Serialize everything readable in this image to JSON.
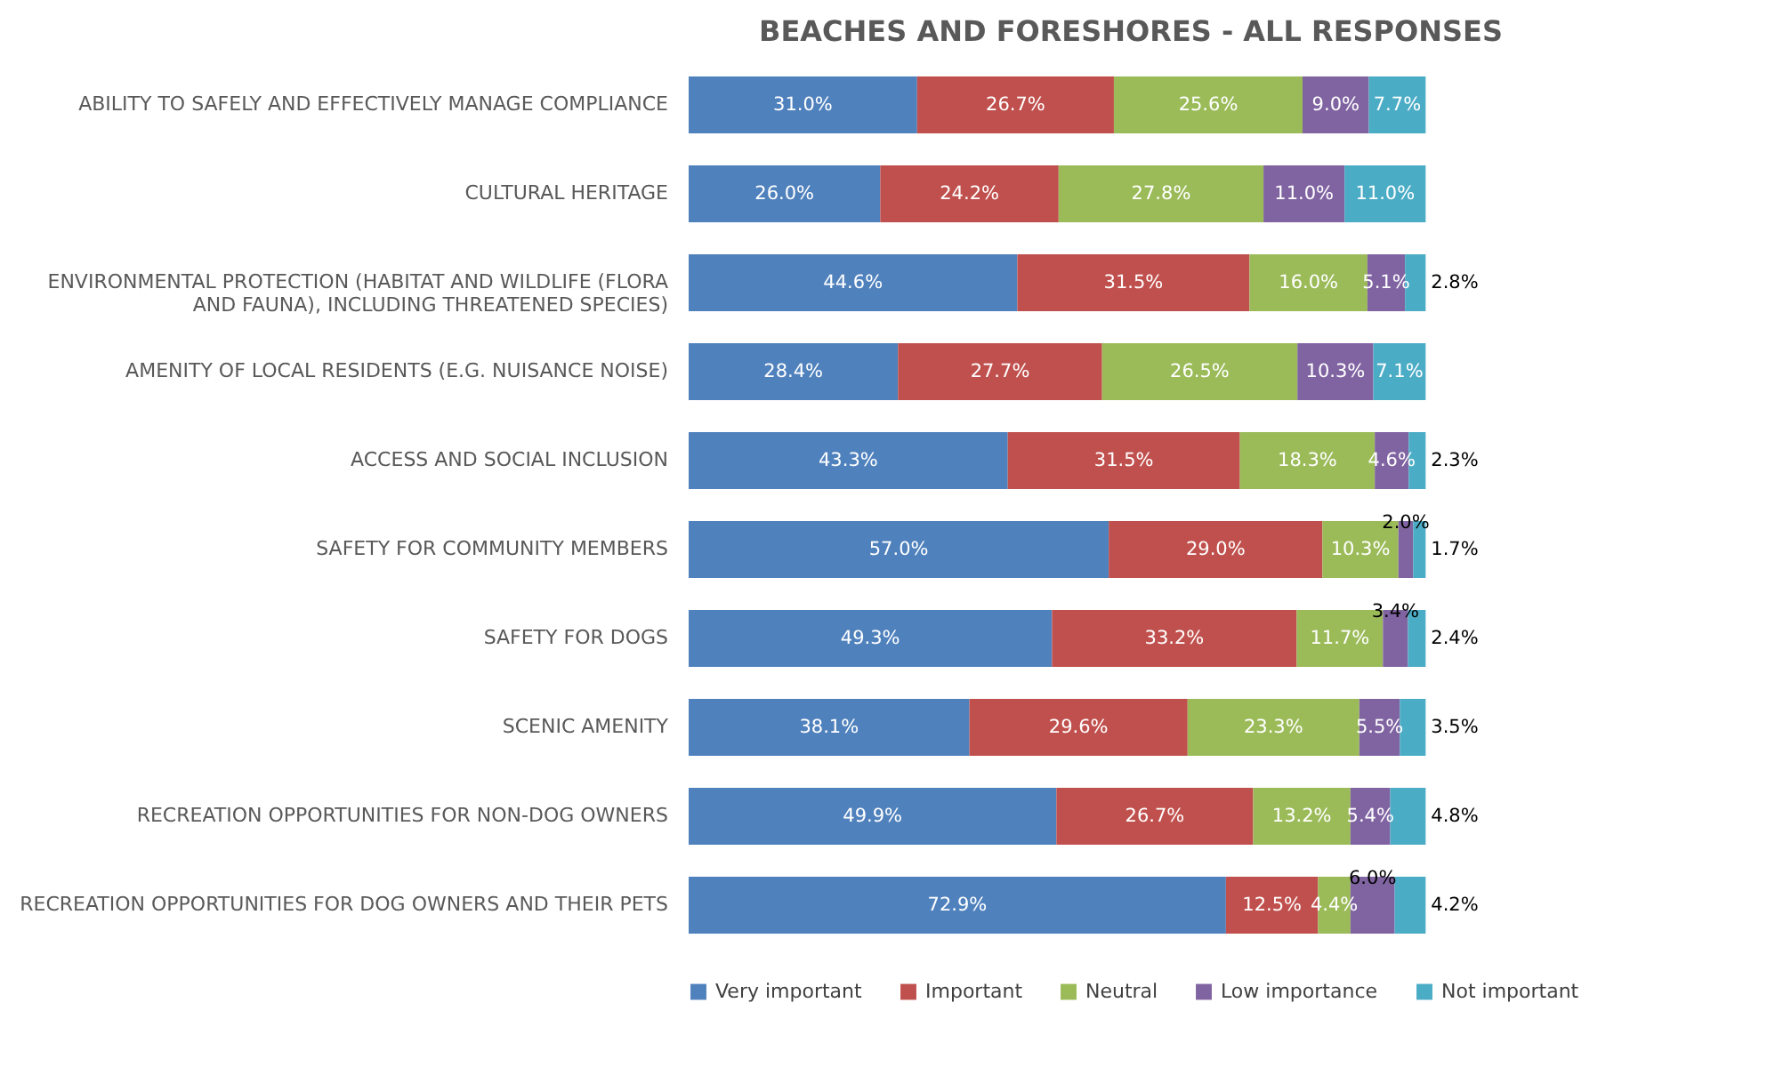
{
  "chart_data": {
    "type": "bar",
    "orientation": "horizontal",
    "stacked": true,
    "title": "BEACHES AND FORESHORES - ALL RESPONSES",
    "legend": "bottom",
    "grid": false,
    "categories": [
      "ABILITY TO SAFELY AND EFFECTIVELY MANAGE COMPLIANCE",
      "CULTURAL HERITAGE",
      "ENVIRONMENTAL PROTECTION (HABITAT AND WILDLIFE (FLORA AND FAUNA), INCLUDING THREATENED SPECIES)",
      "AMENITY OF LOCAL RESIDENTS (E.G. NUISANCE NOISE)",
      "ACCESS AND SOCIAL INCLUSION",
      "SAFETY FOR COMMUNITY MEMBERS",
      "SAFETY FOR DOGS",
      "SCENIC AMENITY",
      "RECREATION OPPORTUNITIES FOR NON-DOG OWNERS",
      "RECREATION OPPORTUNITIES FOR DOG OWNERS AND THEIR PETS"
    ],
    "series": [
      {
        "name": "Very important",
        "color": "#4f81bd",
        "values": [
          31.0,
          26.0,
          44.6,
          28.4,
          43.3,
          57.0,
          49.3,
          38.1,
          49.9,
          72.9
        ],
        "value_labels": [
          "31.0%",
          "26.0%",
          "44.6%",
          "28.4%",
          "43.3%",
          "57.0%",
          "49.3%",
          "38.1%",
          "49.9%",
          "72.9%"
        ]
      },
      {
        "name": "Important",
        "color": "#c0504d",
        "values": [
          26.7,
          24.2,
          31.5,
          27.7,
          31.5,
          29.0,
          33.2,
          29.6,
          26.7,
          12.5
        ],
        "value_labels": [
          "26.7%",
          "24.2%",
          "31.5%",
          "27.7%",
          "31.5%",
          "29.0%",
          "33.2%",
          "29.6%",
          "26.7%",
          "12.5%"
        ]
      },
      {
        "name": "Neutral",
        "color": "#9bbb59",
        "values": [
          25.6,
          27.8,
          16.0,
          26.5,
          18.3,
          10.3,
          11.7,
          23.3,
          13.2,
          4.4
        ],
        "value_labels": [
          "25.6%",
          "27.8%",
          "16.0%",
          "26.5%",
          "18.3%",
          "10.3%",
          "11.7%",
          "23.3%",
          "13.2%",
          "4.4%"
        ]
      },
      {
        "name": "Low importance",
        "color": "#8064a2",
        "values": [
          9.0,
          11.0,
          5.1,
          10.3,
          4.6,
          2.0,
          3.4,
          5.5,
          5.4,
          6.0
        ],
        "value_labels": [
          "9.0%",
          "11.0%",
          "5.1%",
          "10.3%",
          "4.6%",
          "2.0%",
          "3.4%",
          "5.5%",
          "5.4%",
          "6.0%"
        ]
      },
      {
        "name": "Not important",
        "color": "#4bacc6",
        "values": [
          7.7,
          11.0,
          2.8,
          7.1,
          2.3,
          1.7,
          2.4,
          3.5,
          4.8,
          4.2
        ],
        "value_labels": [
          "7.7%",
          "11.0%",
          "2.8%",
          "7.1%",
          "2.3%",
          "1.7%",
          "2.4%",
          "3.5%",
          "4.8%",
          "4.2%"
        ]
      }
    ]
  }
}
